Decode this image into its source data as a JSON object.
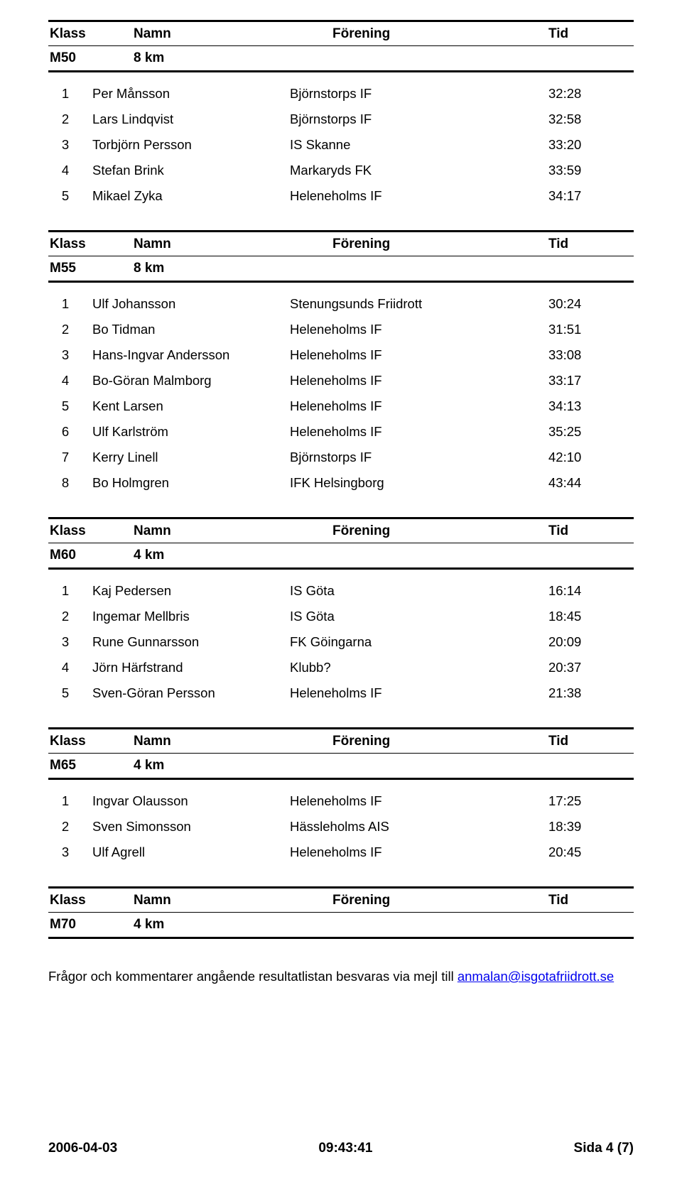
{
  "headers": {
    "klass": "Klass",
    "namn": "Namn",
    "forening": "Förening",
    "tid": "Tid"
  },
  "sections": [
    {
      "klass": "M50",
      "dist": "8 km",
      "rows": [
        {
          "pos": "1",
          "name": "Per Månsson",
          "club": "Björnstorps IF",
          "time": "32:28"
        },
        {
          "pos": "2",
          "name": "Lars Lindqvist",
          "club": "Björnstorps IF",
          "time": "32:58"
        },
        {
          "pos": "3",
          "name": "Torbjörn Persson",
          "club": "IS Skanne",
          "time": "33:20"
        },
        {
          "pos": "4",
          "name": "Stefan Brink",
          "club": "Markaryds FK",
          "time": "33:59"
        },
        {
          "pos": "5",
          "name": "Mikael Zyka",
          "club": "Heleneholms IF",
          "time": "34:17"
        }
      ]
    },
    {
      "klass": "M55",
      "dist": "8 km",
      "rows": [
        {
          "pos": "1",
          "name": "Ulf Johansson",
          "club": "Stenungsunds Friidrott",
          "time": "30:24"
        },
        {
          "pos": "2",
          "name": "Bo Tidman",
          "club": "Heleneholms IF",
          "time": "31:51"
        },
        {
          "pos": "3",
          "name": "Hans-Ingvar Andersson",
          "club": "Heleneholms IF",
          "time": "33:08"
        },
        {
          "pos": "4",
          "name": "Bo-Göran Malmborg",
          "club": "Heleneholms IF",
          "time": "33:17"
        },
        {
          "pos": "5",
          "name": "Kent Larsen",
          "club": "Heleneholms IF",
          "time": "34:13"
        },
        {
          "pos": "6",
          "name": "Ulf Karlström",
          "club": "Heleneholms IF",
          "time": "35:25"
        },
        {
          "pos": "7",
          "name": "Kerry Linell",
          "club": "Björnstorps IF",
          "time": "42:10"
        },
        {
          "pos": "8",
          "name": "Bo Holmgren",
          "club": "IFK Helsingborg",
          "time": "43:44"
        }
      ]
    },
    {
      "klass": "M60",
      "dist": "4 km",
      "rows": [
        {
          "pos": "1",
          "name": "Kaj Pedersen",
          "club": "IS Göta",
          "time": "16:14"
        },
        {
          "pos": "2",
          "name": "Ingemar Mellbris",
          "club": "IS Göta",
          "time": "18:45"
        },
        {
          "pos": "3",
          "name": "Rune Gunnarsson",
          "club": "FK Göingarna",
          "time": "20:09"
        },
        {
          "pos": "4",
          "name": "Jörn Härfstrand",
          "club": "Klubb?",
          "time": "20:37"
        },
        {
          "pos": "5",
          "name": "Sven-Göran Persson",
          "club": "Heleneholms IF",
          "time": "21:38"
        }
      ]
    },
    {
      "klass": "M65",
      "dist": "4 km",
      "rows": [
        {
          "pos": "1",
          "name": "Ingvar Olausson",
          "club": "Heleneholms IF",
          "time": "17:25"
        },
        {
          "pos": "2",
          "name": "Sven Simonsson",
          "club": "Hässleholms AIS",
          "time": "18:39"
        },
        {
          "pos": "3",
          "name": "Ulf Agrell",
          "club": "Heleneholms IF",
          "time": "20:45"
        }
      ]
    },
    {
      "klass": "M70",
      "dist": "4 km",
      "rows": []
    }
  ],
  "footer_note_prefix": "Frågor och kommentarer angående resultatlistan besvaras via mejl till ",
  "footer_note_link": "anmalan@isgotafriidrott.se",
  "page_footer": {
    "date": "2006-04-03",
    "time": "09:43:41",
    "page": "Sida 4 (7)"
  }
}
